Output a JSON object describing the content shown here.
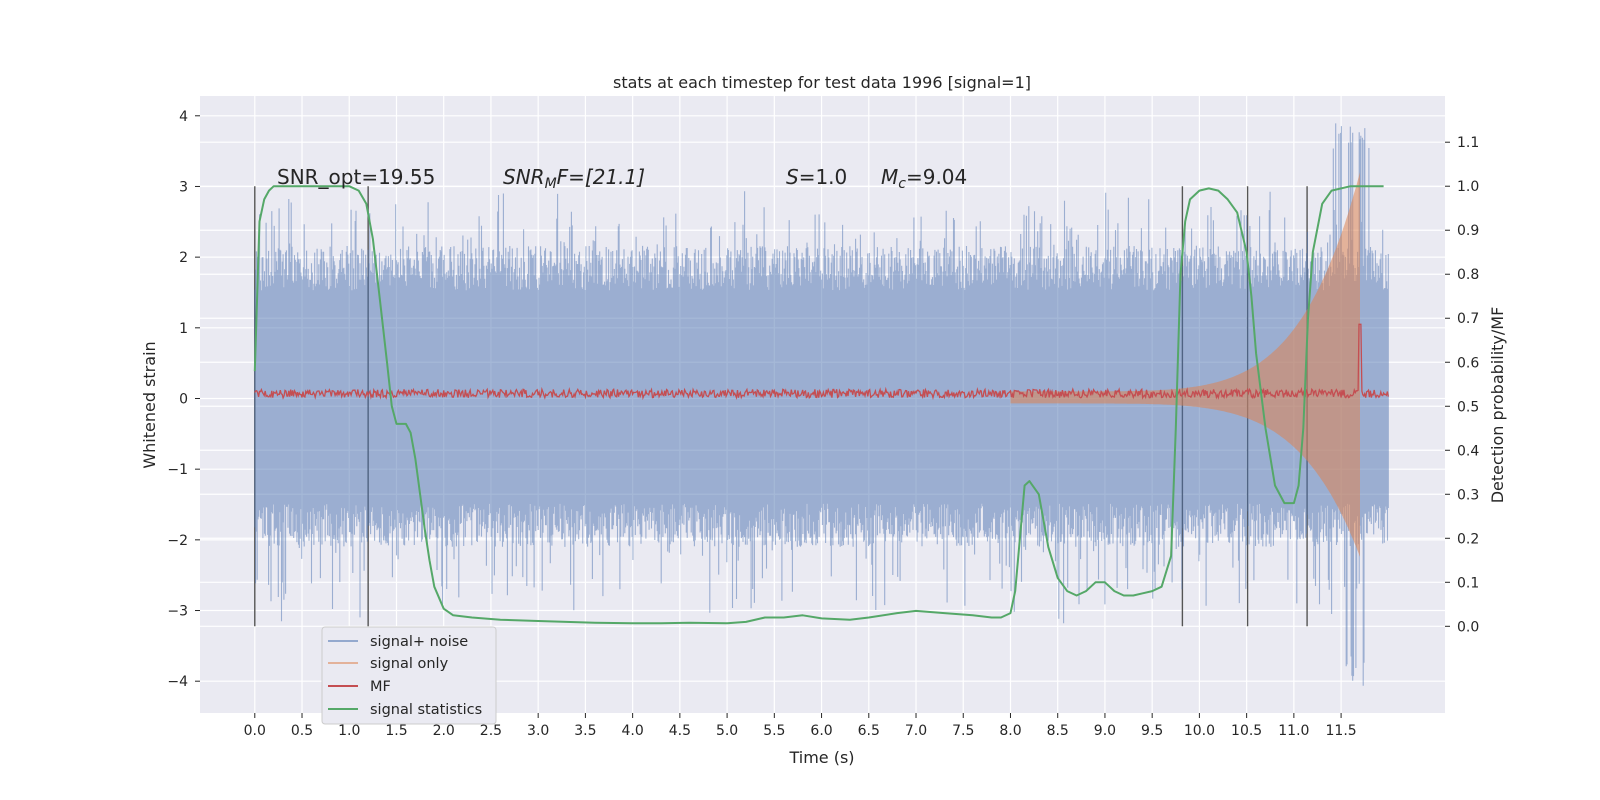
{
  "chart_data": {
    "type": "line",
    "title": "stats at each timestep for test data 1996 [signal=1]",
    "xlabel": "Time (s)",
    "ylabel": "Whitened strain",
    "ylabel_right": "Detection probability/MF",
    "xlim": [
      -0.58,
      12.6
    ],
    "ylim": [
      -4.45,
      4.28
    ],
    "ylim_right": [
      -0.197,
      1.205
    ],
    "x_ticks": [
      "0.0",
      "0.5",
      "1.0",
      "1.5",
      "2.0",
      "2.5",
      "3.0",
      "3.5",
      "4.0",
      "4.5",
      "5.0",
      "5.5",
      "6.0",
      "6.5",
      "7.0",
      "7.5",
      "8.0",
      "8.5",
      "9.0",
      "9.5",
      "10.0",
      "10.5",
      "11.0",
      "11.5"
    ],
    "y_ticks_left": [
      "4",
      "3",
      "2",
      "1",
      "0",
      "−1",
      "−2",
      "−3",
      "−4"
    ],
    "y_ticks_right": [
      "1.1",
      "1.0",
      "0.9",
      "0.8",
      "0.7",
      "0.6",
      "0.5",
      "0.4",
      "0.3",
      "0.2",
      "0.1",
      "0.0"
    ],
    "grid": true,
    "legend_position": "lower-left",
    "annotations": {
      "snr_opt": "SNR_opt=19.55",
      "snr_mf_prefix": "SNR",
      "snr_mf_sub": "M",
      "snr_mf_suffix": "F=[21.1]",
      "s_symbol": "S",
      "s_value": "=1.0",
      "mc_symbol": "M",
      "mc_sub": "c",
      "mc_value": "=9.04"
    },
    "vertical_lines_x": [
      0.0,
      1.2,
      9.82,
      10.51,
      11.14
    ],
    "series": [
      {
        "name": "signal+ noise",
        "color": "#4c72b0",
        "envelope_upper": 1.8,
        "envelope_lower": -1.75,
        "spike_max": 3.9,
        "spike_min": -4.1,
        "x_range": [
          0.0,
          12.0
        ]
      },
      {
        "name": "signal only",
        "color": "#dd8452",
        "envelope_start": [
          8.0,
          0.1
        ],
        "envelope_end": [
          11.7,
          3.2
        ],
        "x_range": [
          8.0,
          11.7
        ]
      },
      {
        "name": "MF",
        "color": "#c44e52",
        "level": 0.07,
        "spike_x": 11.7,
        "spike_y": 1.05
      },
      {
        "name": "signal statistics",
        "color": "#55a868",
        "axis": "right",
        "x": [
          0.0,
          0.05,
          0.1,
          0.15,
          0.2,
          0.3,
          0.5,
          0.8,
          1.0,
          1.1,
          1.18,
          1.25,
          1.32,
          1.4,
          1.45,
          1.5,
          1.6,
          1.65,
          1.7,
          1.75,
          1.8,
          1.85,
          1.9,
          2.0,
          2.1,
          2.3,
          2.6,
          3.0,
          3.3,
          3.6,
          4.0,
          4.3,
          4.6,
          5.0,
          5.2,
          5.4,
          5.6,
          5.8,
          6.0,
          6.3,
          6.5,
          6.8,
          7.0,
          7.3,
          7.6,
          7.8,
          7.9,
          8.0,
          8.05,
          8.1,
          8.15,
          8.2,
          8.3,
          8.4,
          8.5,
          8.6,
          8.7,
          8.8,
          8.9,
          9.0,
          9.1,
          9.2,
          9.3,
          9.4,
          9.5,
          9.6,
          9.7,
          9.75,
          9.8,
          9.85,
          9.9,
          10.0,
          10.1,
          10.2,
          10.3,
          10.4,
          10.5,
          10.55,
          10.6,
          10.7,
          10.8,
          10.9,
          11.0,
          11.05,
          11.1,
          11.15,
          11.2,
          11.3,
          11.4,
          11.6,
          11.8,
          11.95
        ],
        "y": [
          0.58,
          0.92,
          0.97,
          0.99,
          1.0,
          1.0,
          1.0,
          1.0,
          1.0,
          0.99,
          0.96,
          0.88,
          0.75,
          0.6,
          0.5,
          0.46,
          0.46,
          0.44,
          0.38,
          0.3,
          0.22,
          0.15,
          0.09,
          0.04,
          0.025,
          0.02,
          0.015,
          0.012,
          0.01,
          0.008,
          0.007,
          0.007,
          0.008,
          0.007,
          0.01,
          0.02,
          0.02,
          0.025,
          0.018,
          0.015,
          0.02,
          0.03,
          0.035,
          0.03,
          0.025,
          0.02,
          0.02,
          0.03,
          0.08,
          0.2,
          0.32,
          0.33,
          0.3,
          0.18,
          0.11,
          0.08,
          0.07,
          0.08,
          0.1,
          0.1,
          0.08,
          0.07,
          0.07,
          0.075,
          0.08,
          0.09,
          0.16,
          0.45,
          0.8,
          0.92,
          0.97,
          0.99,
          0.995,
          0.99,
          0.97,
          0.94,
          0.85,
          0.75,
          0.62,
          0.45,
          0.32,
          0.28,
          0.28,
          0.32,
          0.45,
          0.7,
          0.85,
          0.96,
          0.99,
          1.0,
          1.0,
          1.0
        ]
      }
    ]
  }
}
